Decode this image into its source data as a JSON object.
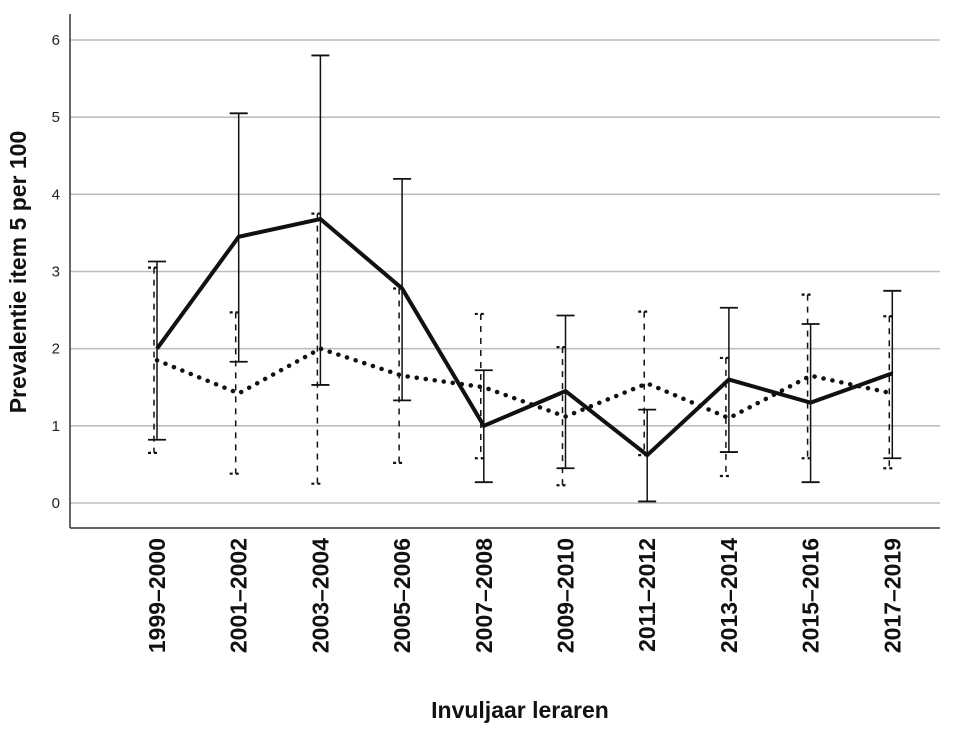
{
  "chart_data": {
    "type": "line",
    "title": "",
    "xlabel": "Invuljaar leraren",
    "ylabel": "Prevalentie item 5 per 100",
    "categories": [
      "1999–2000",
      "2001–2002",
      "2003–2004",
      "2005–2006",
      "2007–2008",
      "2009–2010",
      "2011–2012",
      "2013–2014",
      "2015–2016",
      "2017–2019"
    ],
    "ylim": [
      0,
      6
    ],
    "yticks": [
      0,
      1,
      2,
      3,
      4,
      5,
      6
    ],
    "grid": true,
    "legend": "none",
    "series": [
      {
        "style": "solid",
        "color": "#111111",
        "values": [
          2.0,
          3.45,
          3.68,
          2.78,
          1.0,
          1.45,
          0.62,
          1.6,
          1.3,
          1.68
        ],
        "lower": [
          0.82,
          1.83,
          1.53,
          1.33,
          0.27,
          0.45,
          0.02,
          0.66,
          0.27,
          0.58
        ],
        "upper": [
          3.13,
          5.05,
          5.8,
          4.2,
          1.72,
          2.43,
          1.21,
          2.53,
          2.32,
          2.75
        ]
      },
      {
        "style": "dotted",
        "color": "#111111",
        "values": [
          1.85,
          1.42,
          2.0,
          1.65,
          1.5,
          1.12,
          1.55,
          1.1,
          1.65,
          1.42
        ],
        "lower": [
          0.65,
          0.38,
          0.25,
          0.52,
          0.58,
          0.23,
          0.62,
          0.35,
          0.58,
          0.45
        ],
        "upper": [
          3.05,
          2.47,
          3.75,
          2.78,
          2.45,
          2.02,
          2.48,
          1.88,
          2.7,
          2.42
        ]
      }
    ]
  }
}
